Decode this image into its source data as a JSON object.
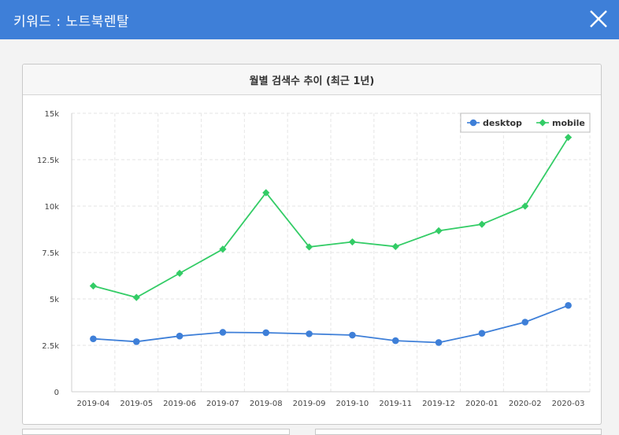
{
  "header": {
    "title": "키워드 : 노트북렌탈"
  },
  "panel": {
    "title": "월별 검색수 추이 (최근 1년)"
  },
  "colors": {
    "header": "#3e7fd8",
    "desktop": "#3e7fd8",
    "mobile": "#33cc66"
  },
  "chart_data": {
    "type": "line",
    "title": "월별 검색수 추이 (최근 1년)",
    "categories": [
      "2019-04",
      "2019-05",
      "2019-06",
      "2019-07",
      "2019-08",
      "2019-09",
      "2019-10",
      "2019-11",
      "2019-12",
      "2020-01",
      "2020-02",
      "2020-03"
    ],
    "series": [
      {
        "name": "desktop",
        "values": [
          2850,
          2700,
          3000,
          3200,
          3180,
          3120,
          3050,
          2750,
          2650,
          3150,
          3750,
          4650
        ]
      },
      {
        "name": "mobile",
        "values": [
          5700,
          5080,
          6380,
          7680,
          10720,
          7800,
          8070,
          7820,
          8670,
          9020,
          10000,
          13700
        ]
      }
    ],
    "ylim": [
      0,
      15000
    ],
    "yticks": [
      0,
      2500,
      5000,
      7500,
      10000,
      12500,
      15000
    ],
    "ytick_labels": [
      "0",
      "2.5k",
      "5k",
      "7.5k",
      "10k",
      "12.5k",
      "15k"
    ],
    "grid": true,
    "legend_position": "top-right"
  }
}
